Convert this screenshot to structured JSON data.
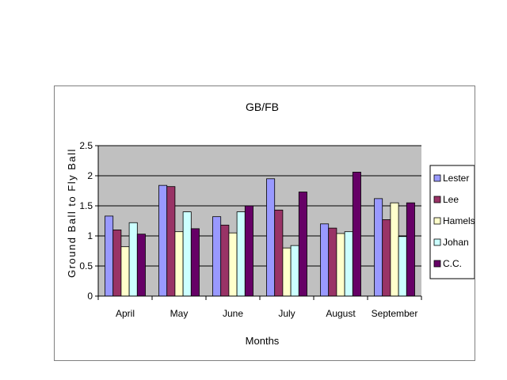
{
  "chart_data": {
    "type": "bar",
    "title": "GB/FB",
    "xlabel": "Months",
    "ylabel": "Ground Ball to Fly Ball",
    "ylim": [
      0,
      2.5
    ],
    "yticks": [
      "0",
      "0.5",
      "1",
      "1.5",
      "2",
      "2.5"
    ],
    "grid": true,
    "legend_position": "right",
    "categories": [
      "April",
      "May",
      "June",
      "July",
      "August",
      "September"
    ],
    "series": [
      {
        "name": "Lester",
        "color": "#9999ff",
        "values": [
          1.33,
          1.84,
          1.32,
          1.95,
          1.2,
          1.62
        ]
      },
      {
        "name": "Lee",
        "color": "#993366",
        "values": [
          1.1,
          1.82,
          1.18,
          1.43,
          1.13,
          1.27
        ]
      },
      {
        "name": "Hamels",
        "color": "#ffffcc",
        "values": [
          0.82,
          1.07,
          1.05,
          0.8,
          1.04,
          1.55
        ]
      },
      {
        "name": "Johan",
        "color": "#ccffff",
        "values": [
          1.22,
          1.4,
          1.4,
          0.84,
          1.07,
          0.99
        ]
      },
      {
        "name": "C.C.",
        "color": "#660066",
        "values": [
          1.03,
          1.12,
          1.5,
          1.73,
          2.06,
          1.55
        ]
      }
    ],
    "plot_background": "#c0c0c0"
  }
}
